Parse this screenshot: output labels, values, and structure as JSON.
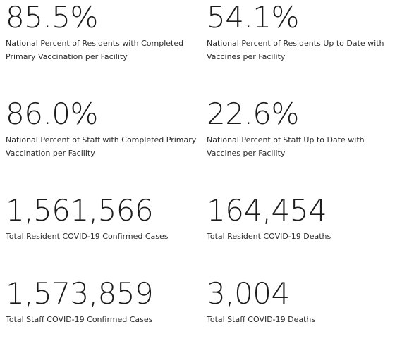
{
  "stats": [
    {
      "value": "85.5%",
      "label": "National Percent of Residents with Completed Primary Vaccination per Facility"
    },
    {
      "value": "54.1%",
      "label": "National Percent of Residents Up to Date with Vaccines per Facility"
    },
    {
      "value": "86.0%",
      "label": "National Percent of Staff with Completed Primary Vaccination per Facility"
    },
    {
      "value": "22.6%",
      "label": "National Percent of Staff Up to Date with Vaccines per Facility"
    },
    {
      "value": "1,561,566",
      "label": "Total Resident COVID-19 Confirmed Cases"
    },
    {
      "value": "164,454",
      "label": "Total Resident COVID-19 Deaths"
    },
    {
      "value": "1,573,859",
      "label": "Total Staff COVID-19 Confirmed Cases"
    },
    {
      "value": "3,004",
      "label": "Total Staff COVID-19 Deaths"
    }
  ]
}
